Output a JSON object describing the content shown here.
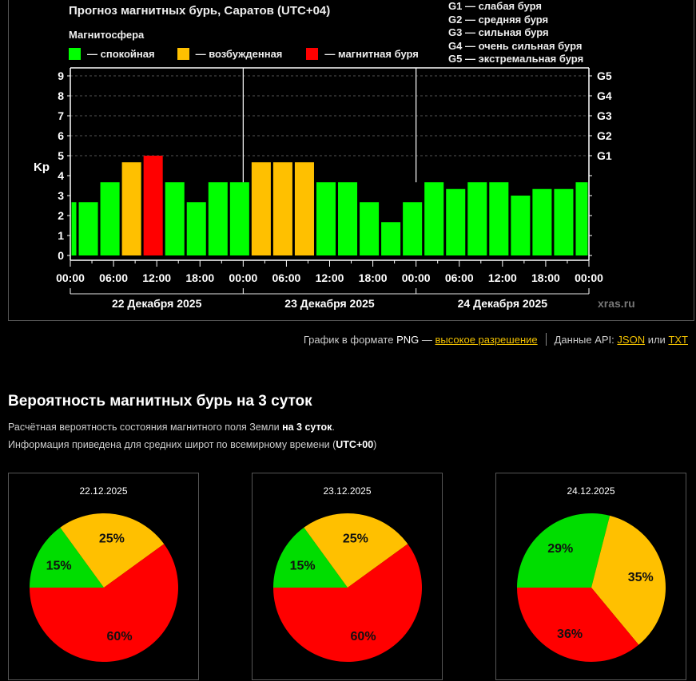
{
  "header": {
    "title": "Прогноз магнитных бурь, Саратов (UTC+04)",
    "legend_title": "Магнитосфера",
    "legend": [
      {
        "label": "— спокойная",
        "color": "#00ff00"
      },
      {
        "label": "— возбужденная",
        "color": "#ffc000"
      },
      {
        "label": "— магнитная буря",
        "color": "#ff0000"
      }
    ],
    "g_scale": [
      "G1 — слабая буря",
      "G2 — средняя буря",
      "G3 — сильная буря",
      "G4 — очень сильная буря",
      "G5 — экстремальная буря"
    ]
  },
  "chart_data": {
    "type": "bar",
    "title": "Прогноз магнитных бурь, Саратов (UTC+04)",
    "ylabel": "Kp",
    "ylim": [
      0,
      9
    ],
    "yticks": [
      "0",
      "1",
      "2",
      "3",
      "4",
      "5",
      "6",
      "7",
      "8",
      "9"
    ],
    "y2ticks": [
      {
        "kp": 5,
        "label": "G1"
      },
      {
        "kp": 6,
        "label": "G2"
      },
      {
        "kp": 7,
        "label": "G3"
      },
      {
        "kp": 8,
        "label": "G4"
      },
      {
        "kp": 9,
        "label": "G5"
      }
    ],
    "grid": true,
    "x_range_hours": [
      0,
      72
    ],
    "xticks": [
      "00:00",
      "06:00",
      "12:00",
      "18:00",
      "00:00",
      "06:00",
      "12:00",
      "18:00",
      "00:00",
      "06:00",
      "12:00",
      "18:00",
      "00:00"
    ],
    "days": [
      "22 Декабря 2025",
      "23 Декабря 2025",
      "24 Декабря 2025"
    ],
    "bars": [
      {
        "start_h": 0,
        "end_h": 1,
        "kp": 2.67,
        "level": "quiet"
      },
      {
        "start_h": 1,
        "end_h": 4,
        "kp": 2.67,
        "level": "quiet"
      },
      {
        "start_h": 4,
        "end_h": 7,
        "kp": 3.67,
        "level": "quiet"
      },
      {
        "start_h": 7,
        "end_h": 10,
        "kp": 4.67,
        "level": "active"
      },
      {
        "start_h": 10,
        "end_h": 13,
        "kp": 5.0,
        "level": "storm"
      },
      {
        "start_h": 13,
        "end_h": 16,
        "kp": 3.67,
        "level": "quiet"
      },
      {
        "start_h": 16,
        "end_h": 19,
        "kp": 2.67,
        "level": "quiet"
      },
      {
        "start_h": 19,
        "end_h": 22,
        "kp": 3.67,
        "level": "quiet"
      },
      {
        "start_h": 22,
        "end_h": 25,
        "kp": 3.67,
        "level": "quiet"
      },
      {
        "start_h": 25,
        "end_h": 28,
        "kp": 4.67,
        "level": "active"
      },
      {
        "start_h": 28,
        "end_h": 31,
        "kp": 4.67,
        "level": "active"
      },
      {
        "start_h": 31,
        "end_h": 34,
        "kp": 4.67,
        "level": "active"
      },
      {
        "start_h": 34,
        "end_h": 37,
        "kp": 3.67,
        "level": "quiet"
      },
      {
        "start_h": 37,
        "end_h": 40,
        "kp": 3.67,
        "level": "quiet"
      },
      {
        "start_h": 40,
        "end_h": 43,
        "kp": 2.67,
        "level": "quiet"
      },
      {
        "start_h": 43,
        "end_h": 46,
        "kp": 1.67,
        "level": "quiet"
      },
      {
        "start_h": 46,
        "end_h": 49,
        "kp": 2.67,
        "level": "quiet"
      },
      {
        "start_h": 49,
        "end_h": 52,
        "kp": 3.67,
        "level": "quiet"
      },
      {
        "start_h": 52,
        "end_h": 55,
        "kp": 3.33,
        "level": "quiet"
      },
      {
        "start_h": 55,
        "end_h": 58,
        "kp": 3.67,
        "level": "quiet"
      },
      {
        "start_h": 58,
        "end_h": 61,
        "kp": 3.67,
        "level": "quiet"
      },
      {
        "start_h": 61,
        "end_h": 64,
        "kp": 3.0,
        "level": "quiet"
      },
      {
        "start_h": 64,
        "end_h": 67,
        "kp": 3.33,
        "level": "quiet"
      },
      {
        "start_h": 67,
        "end_h": 70,
        "kp": 3.33,
        "level": "quiet"
      },
      {
        "start_h": 70,
        "end_h": 72,
        "kp": 3.67,
        "level": "quiet"
      }
    ],
    "colors": {
      "quiet": "#00ff00",
      "active": "#ffc000",
      "storm": "#ff0000"
    },
    "watermark": "xras.ru"
  },
  "links": {
    "png_prefix": "График в формате",
    "png_word": "PNG",
    "png_dash": "—",
    "hires": "высокое разрешение",
    "api_prefix": "Данные API:",
    "json": "JSON",
    "or": "или",
    "txt": "TXT"
  },
  "probability": {
    "heading": "Вероятность магнитных бурь на 3 суток",
    "line1_text": "Расчётная вероятность состояния магнитного поля Земли ",
    "line1_bold": "на 3 суток",
    "line1_end": ".",
    "line2_text": "Информация приведена для средних широт по всемирному времени (",
    "line2_bold": "UTC+00",
    "line2_end": ")",
    "pies": [
      {
        "date": "22.12.2025",
        "slices": [
          {
            "label": "15%",
            "value": 15,
            "color": "#00dd00"
          },
          {
            "label": "25%",
            "value": 25,
            "color": "#ffc000"
          },
          {
            "label": "60%",
            "value": 60,
            "color": "#ff0000"
          }
        ]
      },
      {
        "date": "23.12.2025",
        "slices": [
          {
            "label": "15%",
            "value": 15,
            "color": "#00dd00"
          },
          {
            "label": "25%",
            "value": 25,
            "color": "#ffc000"
          },
          {
            "label": "60%",
            "value": 60,
            "color": "#ff0000"
          }
        ]
      },
      {
        "date": "24.12.2025",
        "slices": [
          {
            "label": "29%",
            "value": 29,
            "color": "#00dd00"
          },
          {
            "label": "35%",
            "value": 35,
            "color": "#ffc000"
          },
          {
            "label": "36%",
            "value": 36,
            "color": "#ff0000"
          }
        ]
      }
    ]
  }
}
